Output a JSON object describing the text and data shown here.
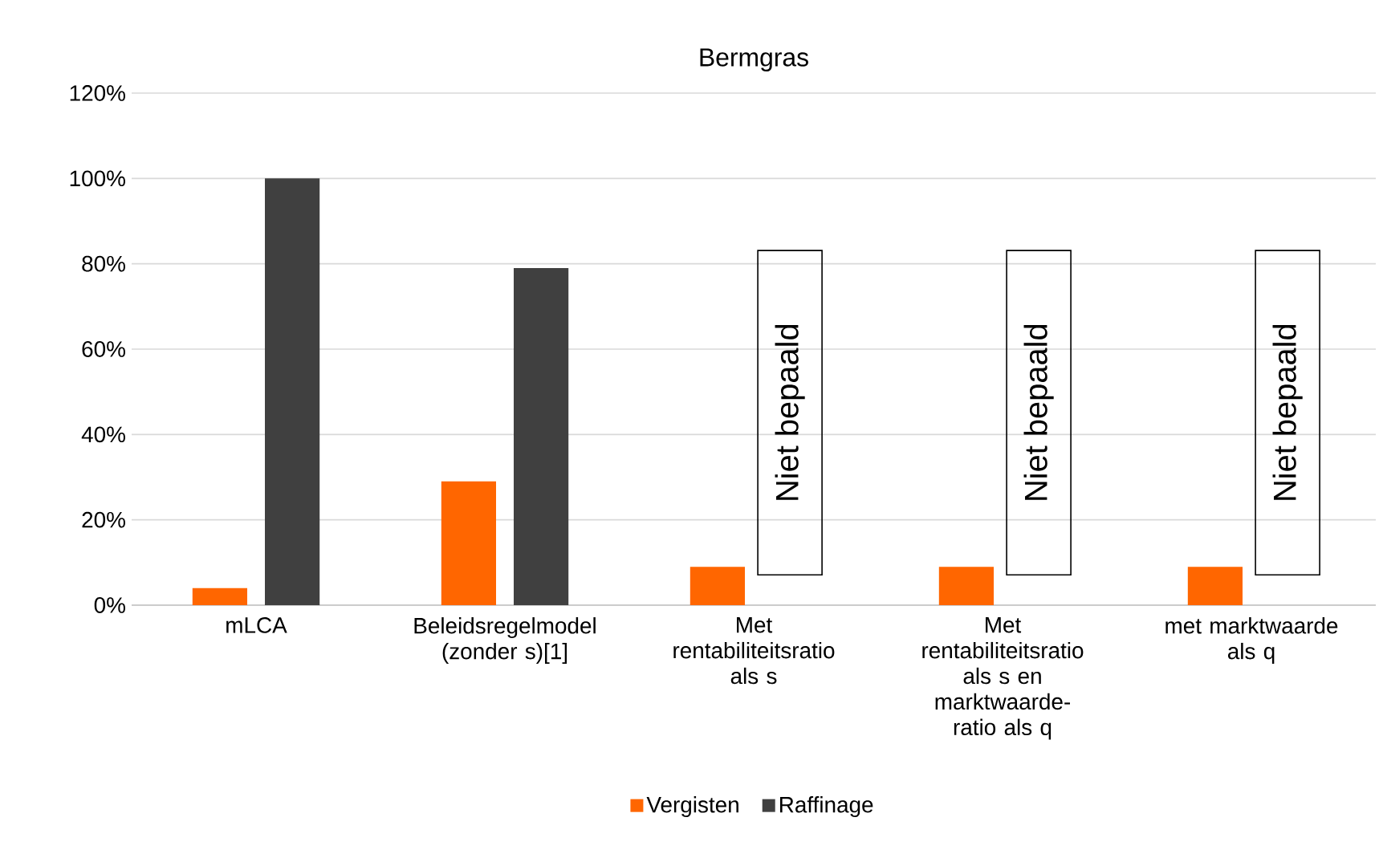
{
  "chart_data": {
    "type": "bar",
    "title": "Bermgras",
    "categories": [
      "mLCA",
      "Beleidsregelmodel (zonder s)[1]",
      "Met rentabiliteitsratio als s",
      "Met rentabiliteitsratio als s en marktwaarde-ratio als q",
      "met marktwaarde als q"
    ],
    "series": [
      {
        "name": "Vergisten",
        "color": "#ff6600",
        "values": [
          4,
          29,
          9,
          9,
          9
        ]
      },
      {
        "name": "Raffinage",
        "color": "#404040",
        "values": [
          100,
          79,
          null,
          null,
          null
        ]
      }
    ],
    "annotations": [
      "Niet bepaald",
      "Niet bepaald",
      "Niet bepaald"
    ],
    "ylim": [
      0,
      120
    ],
    "yticks": [
      {
        "value": 0,
        "label": "0%"
      },
      {
        "value": 20,
        "label": "20%"
      },
      {
        "value": 40,
        "label": "40%"
      },
      {
        "value": 60,
        "label": "60%"
      },
      {
        "value": 80,
        "label": "80%"
      },
      {
        "value": 100,
        "label": "100%"
      },
      {
        "value": 120,
        "label": "120%"
      }
    ],
    "grid": "y",
    "legend": "bottom"
  }
}
